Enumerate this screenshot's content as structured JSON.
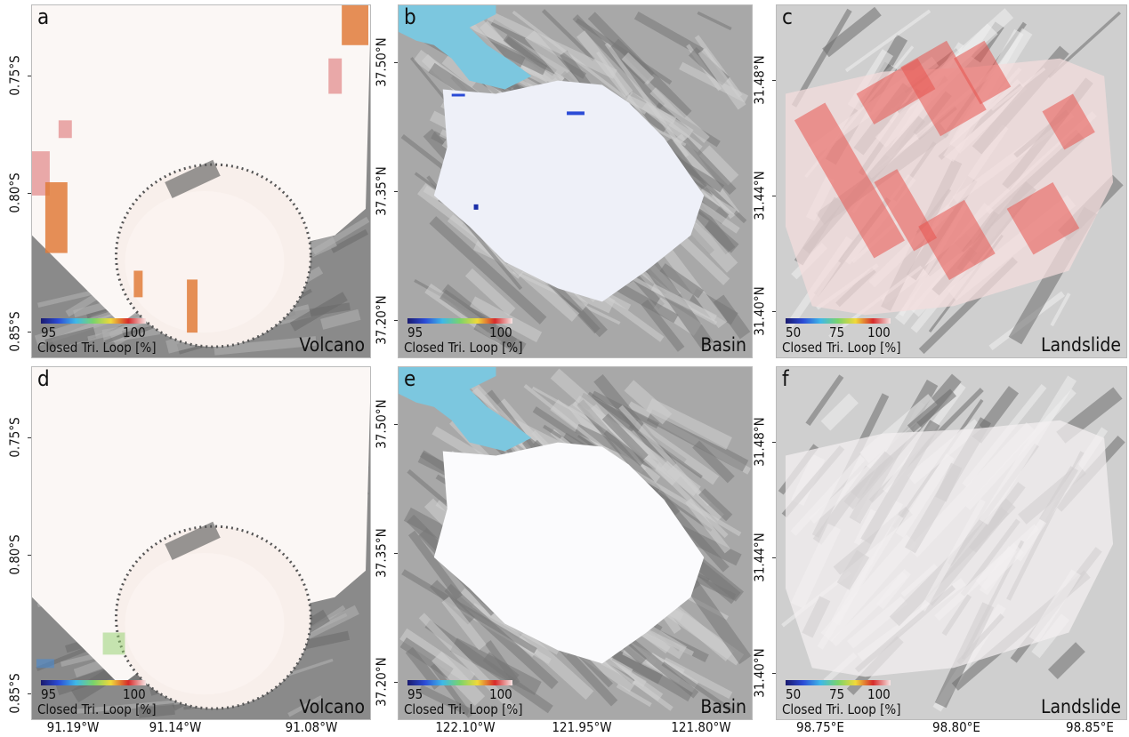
{
  "colorbar": {
    "label": "Closed Tri. Loop [%]",
    "colors": [
      "#1a1a6e",
      "#2b4bd6",
      "#3fb8e8",
      "#7ad36b",
      "#f0d93a",
      "#d62a2a",
      "#f6e4e4"
    ]
  },
  "panels": [
    {
      "letter": "a",
      "region": "Volcano",
      "type": "volcano",
      "overlay": "closed-loop",
      "cb_ticks": [
        "95",
        "100"
      ],
      "lat_ticks": [
        "0.75°S",
        "0.80°S",
        "0.85°S"
      ]
    },
    {
      "letter": "b",
      "region": "Basin",
      "type": "basin",
      "overlay": "closed-loop",
      "cb_ticks": [
        "95",
        "100"
      ],
      "lat_ticks": [
        "37.50°N",
        "37.35°N",
        "37.20°N"
      ]
    },
    {
      "letter": "c",
      "region": "Landslide",
      "type": "landslide",
      "overlay": "closed-loop-red",
      "cb_ticks": [
        "50",
        "75",
        "100"
      ],
      "lat_ticks": [
        "31.48°N",
        "31.44°N",
        "31.40°N"
      ]
    },
    {
      "letter": "d",
      "region": "Volcano",
      "type": "volcano",
      "overlay": "corrected",
      "cb_ticks": [
        "95",
        "100"
      ],
      "lat_ticks": [
        "0.75°S",
        "0.80°S",
        "0.85°S"
      ]
    },
    {
      "letter": "e",
      "region": "Basin",
      "type": "basin",
      "overlay": "corrected",
      "cb_ticks": [
        "95",
        "100"
      ],
      "lat_ticks": [
        "37.50°N",
        "37.35°N",
        "37.20°N"
      ]
    },
    {
      "letter": "f",
      "region": "Landslide",
      "type": "landslide",
      "overlay": "corrected",
      "cb_ticks": [
        "50",
        "75",
        "100"
      ],
      "lat_ticks": [
        "31.48°N",
        "31.44°N",
        "31.40°N"
      ]
    }
  ],
  "lon_ticks": [
    [
      "91.19°W",
      "91.14°W",
      "91.08°W"
    ],
    [
      "122.10°W",
      "121.95°W",
      "121.80°W"
    ],
    [
      "98.75°E",
      "98.80°E",
      "98.85°E"
    ]
  ]
}
